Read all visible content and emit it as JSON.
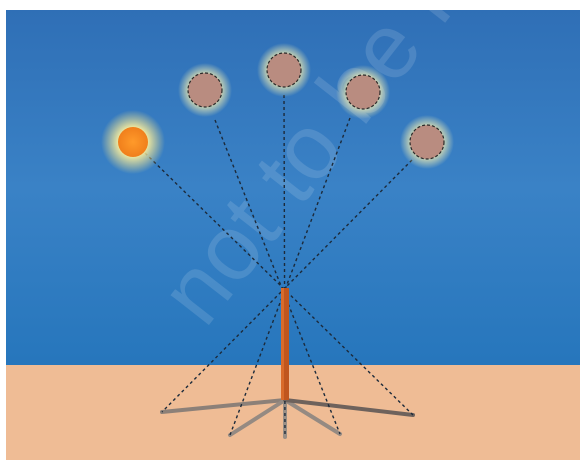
{
  "watermark": "not to be republished"
}
